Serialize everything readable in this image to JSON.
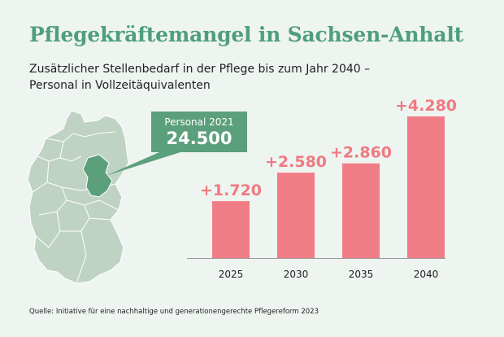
{
  "title": "Pflegekräftemangel in Sachsen-Anhalt",
  "subtitle": {
    "line1": "Zusätzlicher Stellenbedarf in der Pflege bis zum Jahr 2040 –",
    "line2": "Personal in Vollzeitäquivalenten"
  },
  "callout": {
    "label": "Personal 2021",
    "value": "24.500"
  },
  "source": "Quelle: Initiative für eine nachhaltige und generationengerechte Pflegereform 2023",
  "colors": {
    "title": "#4e9e80",
    "bar": "#f07d85",
    "bar_label": "#ef7a82",
    "map_fill": "#bfd3c5",
    "map_highlight": "#5b9f7c",
    "background": "#eef4f0"
  },
  "chart_data": {
    "type": "bar",
    "title": "Zusätzlicher Stellenbedarf in der Pflege bis zum Jahr 2040",
    "categories": [
      "2025",
      "2030",
      "2035",
      "2040"
    ],
    "values": [
      1720,
      2580,
      2860,
      4280
    ],
    "value_labels": [
      "+1.720",
      "+2.580",
      "+2.860",
      "+4.280"
    ],
    "xlabel": "",
    "ylabel": "Personal in Vollzeitäquivalenten",
    "ylim": [
      0,
      4280
    ],
    "grid": false
  }
}
